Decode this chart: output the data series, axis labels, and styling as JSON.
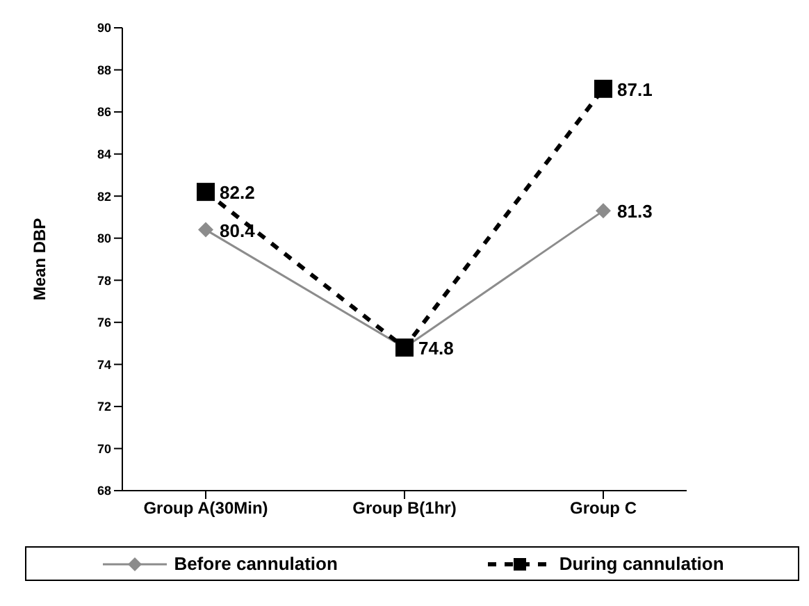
{
  "chart_data": {
    "type": "line",
    "ylabel": "Mean DBP",
    "categories": [
      "Group A(30Min)",
      "Group B(1hr)",
      "Group C"
    ],
    "series": [
      {
        "name": "Before cannulation",
        "color": "#8c8c8c",
        "marker": "diamond",
        "line_style": "solid",
        "values": [
          80.4,
          74.8,
          81.3
        ],
        "value_labels": [
          "80.4",
          null,
          "81.3"
        ]
      },
      {
        "name": "During cannulation",
        "color": "#000000",
        "marker": "square",
        "line_style": "dashed",
        "values": [
          82.2,
          74.8,
          87.1
        ],
        "value_labels": [
          "82.2",
          "74.8",
          "87.1"
        ]
      }
    ],
    "ylim": [
      68,
      90
    ],
    "yticks": [
      68,
      70,
      72,
      74,
      76,
      78,
      80,
      82,
      84,
      86,
      88,
      90
    ],
    "grid": false,
    "legend": "bottom"
  }
}
